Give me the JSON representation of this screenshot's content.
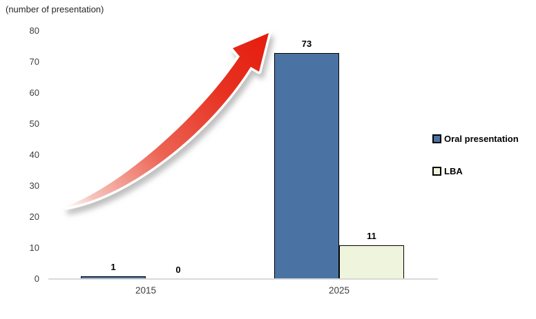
{
  "chart_data": {
    "type": "bar",
    "unit_label": "(number of presentation)",
    "categories": [
      "2015",
      "2025"
    ],
    "series": [
      {
        "name": "Oral presentation",
        "color": "#4a73a4",
        "values": [
          1,
          73
        ]
      },
      {
        "name": "LBA",
        "color": "#eff5dc",
        "values": [
          0,
          11
        ]
      }
    ],
    "ylim": [
      0,
      80
    ],
    "yticks": [
      0,
      10,
      20,
      30,
      40,
      50,
      60,
      70,
      80
    ],
    "grid": false,
    "legend_position": "right",
    "bar_border_color": "#000000",
    "axis_line_color": "#d9d9d9",
    "annotations": [
      {
        "type": "curved-growth-arrow",
        "description": "red curved arrow sweeping up from lower-left to upper-right",
        "color": "#e8211d"
      }
    ]
  }
}
